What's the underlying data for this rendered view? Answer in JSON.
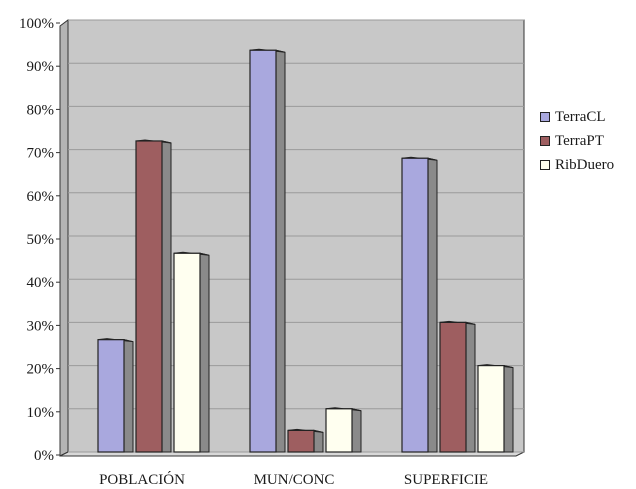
{
  "chart_data": {
    "type": "bar",
    "title": "",
    "xlabel": "",
    "ylabel": "",
    "categories": [
      "POBLACIÓN",
      "MUN/CONC",
      "SUPERFICIE"
    ],
    "series": [
      {
        "name": "TerraCL",
        "color": "#a9a8de",
        "values": [
          26,
          93,
          68
        ]
      },
      {
        "name": "TerraPT",
        "color": "#9e5e60",
        "values": [
          72,
          5,
          30
        ]
      },
      {
        "name": "RibDuero",
        "color": "#fffff0",
        "values": [
          46,
          10,
          20
        ]
      }
    ],
    "ylim": [
      0,
      100
    ],
    "yticks": [
      "0%",
      "10%",
      "20%",
      "30%",
      "40%",
      "50%",
      "60%",
      "70%",
      "80%",
      "90%",
      "100%"
    ],
    "grid": true,
    "legend_position": "right",
    "colors": {
      "plot_bg": "#c8c8c8",
      "wall_side": "#b4b4b4",
      "bar_side": "#8a8a8a"
    }
  }
}
